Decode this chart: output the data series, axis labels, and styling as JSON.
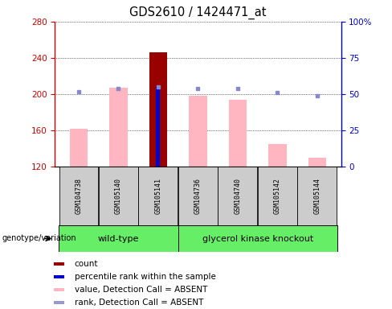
{
  "title": "GDS2610 / 1424471_at",
  "samples": [
    "GSM104738",
    "GSM105140",
    "GSM105141",
    "GSM104736",
    "GSM104740",
    "GSM105142",
    "GSM105144"
  ],
  "pink_values": [
    162,
    207,
    246,
    198,
    194,
    145,
    130
  ],
  "blue_dot_pct": [
    52,
    54,
    55,
    54,
    54,
    51,
    49
  ],
  "red_bar_index": 2,
  "red_bar_value": 246,
  "blue_bar_pct": 55,
  "ylim_left": [
    120,
    280
  ],
  "ylim_right": [
    0,
    100
  ],
  "yticks_left": [
    120,
    160,
    200,
    240,
    280
  ],
  "yticks_right": [
    0,
    25,
    50,
    75,
    100
  ],
  "left_axis_color": "#CC0000",
  "right_axis_color": "#0000CC",
  "pink_bar_color": "#FFB6C1",
  "red_bar_color": "#990000",
  "blue_marker_color": "#8888CC",
  "blue_bar_color": "#0000CC",
  "gray_box_color": "#CCCCCC",
  "green_box_color": "#66EE66",
  "wt_group": [
    0,
    1,
    2
  ],
  "gk_group": [
    3,
    4,
    5,
    6
  ],
  "legend_items": [
    {
      "label": "count",
      "color": "#990000"
    },
    {
      "label": "percentile rank within the sample",
      "color": "#0000CC"
    },
    {
      "label": "value, Detection Call = ABSENT",
      "color": "#FFB6C1"
    },
    {
      "label": "rank, Detection Call = ABSENT",
      "color": "#9999CC"
    }
  ],
  "genotype_label": "genotype/variation"
}
